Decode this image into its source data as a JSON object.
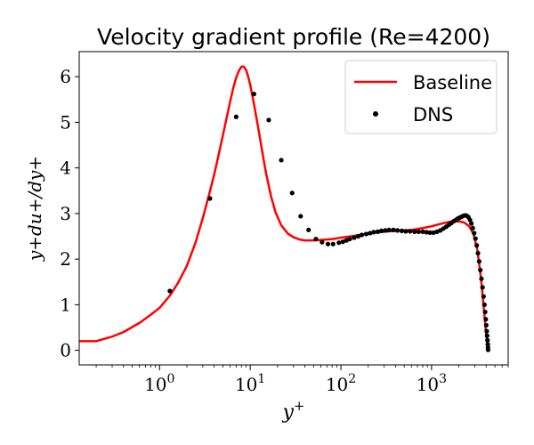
{
  "chart_data": {
    "type": "line",
    "title": "Velocity gradient profile (Re=4200)",
    "xlabel": "y",
    "xlabel_sup": "+",
    "ylabel": "y+du+/dy+",
    "x_scale": "log",
    "xlim": [
      0.13,
      7000
    ],
    "ylim": [
      -0.32,
      6.55
    ],
    "x_ticks": [
      {
        "value": 1,
        "base": "10",
        "exp": "0"
      },
      {
        "value": 10,
        "base": "10",
        "exp": "1"
      },
      {
        "value": 100,
        "base": "10",
        "exp": "2"
      },
      {
        "value": 1000,
        "base": "10",
        "exp": "3"
      }
    ],
    "y_ticks": [
      0,
      1,
      2,
      3,
      4,
      5,
      6
    ],
    "y_tick_labels": [
      "0",
      "1",
      "2",
      "3",
      "4",
      "5",
      "6"
    ],
    "grid": false,
    "legend_position": "top-right",
    "series": [
      {
        "name": "Baseline",
        "kind": "line",
        "color": "#ff0000",
        "x": [
          0.13,
          0.2,
          0.3,
          0.4,
          0.6,
          0.8,
          1.0,
          1.3,
          1.6,
          2.0,
          2.5,
          3.0,
          3.5,
          4.0,
          4.5,
          5.0,
          5.5,
          6.0,
          6.5,
          7.0,
          7.5,
          8.0,
          8.5,
          9.0,
          9.5,
          10.0,
          11.0,
          12.0,
          13.0,
          14.0,
          15.0,
          17.0,
          19.0,
          22.0,
          26.0,
          30.0,
          35.0,
          40.0,
          50.0,
          60.0,
          70.0,
          80.0,
          100.0,
          130.0,
          160.0,
          200.0,
          300.0,
          400.0,
          600.0,
          800.0,
          1000.0,
          1300.0,
          1600.0,
          2000.0,
          2300.0,
          2600.0,
          2900.0,
          3200.0,
          3500.0,
          3800.0,
          4000.0,
          4100.0,
          4200.0
        ],
        "y": [
          0.2,
          0.2,
          0.3,
          0.4,
          0.6,
          0.78,
          0.93,
          1.2,
          1.48,
          1.85,
          2.37,
          2.9,
          3.4,
          3.85,
          4.3,
          4.72,
          5.1,
          5.45,
          5.75,
          5.98,
          6.13,
          6.22,
          6.22,
          6.15,
          6.0,
          5.82,
          5.4,
          4.98,
          4.58,
          4.2,
          3.87,
          3.37,
          3.03,
          2.74,
          2.56,
          2.48,
          2.43,
          2.41,
          2.41,
          2.42,
          2.43,
          2.44,
          2.47,
          2.5,
          2.53,
          2.56,
          2.6,
          2.62,
          2.64,
          2.68,
          2.72,
          2.78,
          2.82,
          2.83,
          2.8,
          2.72,
          2.55,
          2.2,
          1.6,
          0.85,
          0.35,
          0.15,
          0.05
        ]
      },
      {
        "name": "DNS",
        "kind": "scatter",
        "color": "#000000",
        "x": [
          1.3,
          3.6,
          7.0,
          11.0,
          16.0,
          22.0,
          29.0,
          36.0,
          44.0,
          53.0,
          62.0,
          72.0,
          82.0,
          95.0,
          105.0,
          115.0,
          125.0,
          140.0,
          155.0,
          170.0,
          190.0,
          210.0,
          230.0,
          255.0,
          280.0,
          310.0,
          340.0,
          380.0,
          420.0,
          470.0,
          520.0,
          580.0,
          650.0,
          720.0,
          800.0,
          880.0,
          960.0,
          1050.0,
          1150.0,
          1250.0,
          1350.0,
          1450.0,
          1550.0,
          1650.0,
          1750.0,
          1850.0,
          1950.0,
          2050.0,
          2150.0,
          2250.0,
          2350.0,
          2450.0,
          2550.0,
          2650.0,
          2750.0,
          2850.0,
          2950.0,
          3050.0,
          3150.0,
          3250.0,
          3350.0,
          3450.0,
          3550.0,
          3650.0,
          3750.0,
          3830.0,
          3900.0,
          3960.0,
          4010.0,
          4060.0,
          4100.0,
          4140.0,
          4170.0,
          4190.0,
          4200.0
        ],
        "y": [
          1.3,
          3.33,
          5.12,
          5.62,
          5.05,
          4.17,
          3.45,
          2.94,
          2.64,
          2.44,
          2.37,
          2.33,
          2.33,
          2.36,
          2.38,
          2.41,
          2.44,
          2.47,
          2.5,
          2.53,
          2.55,
          2.57,
          2.59,
          2.6,
          2.62,
          2.63,
          2.64,
          2.64,
          2.63,
          2.62,
          2.61,
          2.61,
          2.6,
          2.6,
          2.6,
          2.59,
          2.58,
          2.58,
          2.6,
          2.63,
          2.67,
          2.71,
          2.75,
          2.79,
          2.83,
          2.86,
          2.89,
          2.91,
          2.93,
          2.95,
          2.96,
          2.95,
          2.92,
          2.86,
          2.78,
          2.68,
          2.57,
          2.45,
          2.3,
          2.13,
          1.95,
          1.76,
          1.57,
          1.38,
          1.18,
          1.0,
          0.84,
          0.68,
          0.55,
          0.42,
          0.32,
          0.22,
          0.13,
          0.06,
          0.01
        ]
      }
    ]
  }
}
